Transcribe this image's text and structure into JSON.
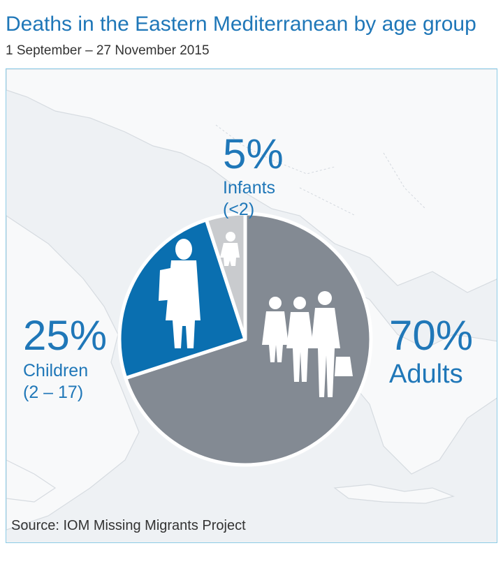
{
  "header": {
    "title": "Deaths in the Eastern Mediterranean by age group",
    "subtitle": "1 September – 27 November 2015"
  },
  "chart_data": {
    "type": "pie",
    "title": "Deaths in the Eastern Mediterranean by age group",
    "subtitle": "1 September – 27 November 2015",
    "slices": [
      {
        "pct": "70%",
        "value": 70,
        "label": "Adults",
        "sublabel": "",
        "color": "#838a93",
        "icon": "adults-silhouette-icon"
      },
      {
        "pct": "25%",
        "value": 25,
        "label": "Children",
        "sublabel": "(2 – 17)",
        "color": "#0a6fb0",
        "icon": "child-silhouette-icon"
      },
      {
        "pct": "5%",
        "value": 5,
        "label": "Infants",
        "sublabel": "(<2)",
        "color": "#c9cbce",
        "icon": "infant-silhouette-icon"
      }
    ],
    "source": "Source: IOM Missing Migrants Project"
  },
  "colors": {
    "accent": "#1f77b8",
    "border": "#8ccbe6",
    "map_sea": "#eef1f4",
    "map_land": "#f8f9fa"
  }
}
